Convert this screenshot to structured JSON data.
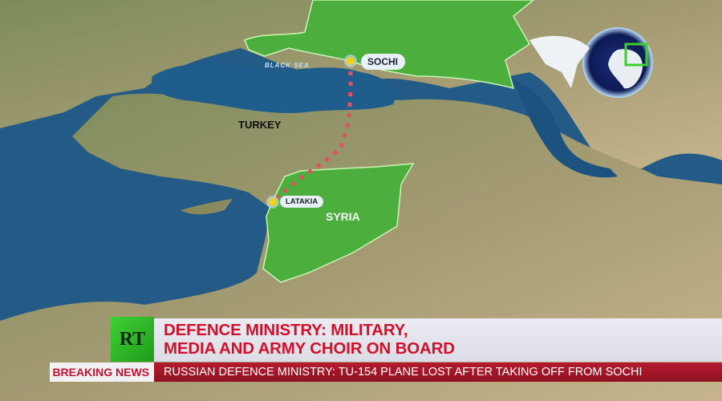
{
  "map": {
    "labels": {
      "black_sea": "BLACK SEA",
      "turkey": "TURKEY",
      "syria": "SYRIA"
    },
    "cities": [
      {
        "name": "SOCHI"
      },
      {
        "name": "LATAKIA"
      }
    ],
    "route": {
      "from": "SOCHI",
      "to": "LATAKIA",
      "style": "dotted",
      "color": "#e0525e"
    },
    "highlight_color": "#4cae3c"
  },
  "branding": {
    "logo": "RT",
    "logo_color": "#2fb82a"
  },
  "lower_third": {
    "headline_line1": "DEFENCE MINISTRY: MILITARY,",
    "headline_line2": "MEDIA AND ARMY CHOIR ON BOARD",
    "ticker_tag": "BREAKING NEWS",
    "ticker_text": "RUSSIAN DEFENCE MINISTRY: TU-154 PLANE LOST AFTER TAKING OFF FROM SOCHI",
    "headline_color": "#d0112b",
    "ticker_color": "#a3182a"
  }
}
